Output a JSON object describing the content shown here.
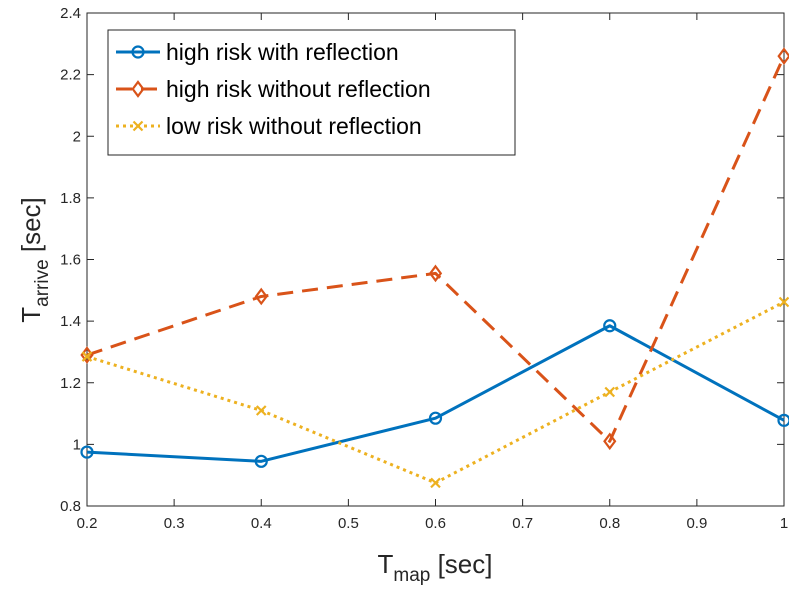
{
  "chart_data": {
    "type": "line",
    "title": "",
    "xlabel": {
      "main": "T",
      "sub": "map",
      "unit": " [sec]"
    },
    "ylabel": {
      "main": "T",
      "sub": "arrive",
      "unit": " [sec]"
    },
    "xlim": [
      0.2,
      1.0
    ],
    "ylim": [
      0.8,
      2.4
    ],
    "xticks": [
      0.2,
      0.3,
      0.4,
      0.5,
      0.6,
      0.7,
      0.8,
      0.9,
      1.0
    ],
    "xtick_labels": [
      "0.2",
      "0.3",
      "0.4",
      "0.5",
      "0.6",
      "0.7",
      "0.8",
      "0.9",
      "1"
    ],
    "yticks": [
      0.8,
      1.0,
      1.2,
      1.4,
      1.6,
      1.8,
      2.0,
      2.2,
      2.4
    ],
    "ytick_labels": [
      "0.8",
      "1",
      "1.2",
      "1.4",
      "1.6",
      "1.8",
      "2",
      "2.2",
      "2.4"
    ],
    "grid": false,
    "legend_position": "top-left",
    "x": [
      0.2,
      0.4,
      0.6,
      0.8,
      1.0
    ],
    "series": [
      {
        "name": "high risk with reflection",
        "values": [
          0.975,
          0.945,
          1.085,
          1.385,
          1.078
        ],
        "color": "#0072BD",
        "style": "solid",
        "marker": "circle"
      },
      {
        "name": "high risk without reflection",
        "values": [
          1.29,
          1.48,
          1.555,
          1.01,
          2.26
        ],
        "color": "#D95319",
        "style": "dashed",
        "marker": "diamond"
      },
      {
        "name": "low risk without reflection",
        "values": [
          1.285,
          1.11,
          0.875,
          1.17,
          1.462
        ],
        "color": "#EDB120",
        "style": "dotted",
        "marker": "x"
      }
    ]
  }
}
